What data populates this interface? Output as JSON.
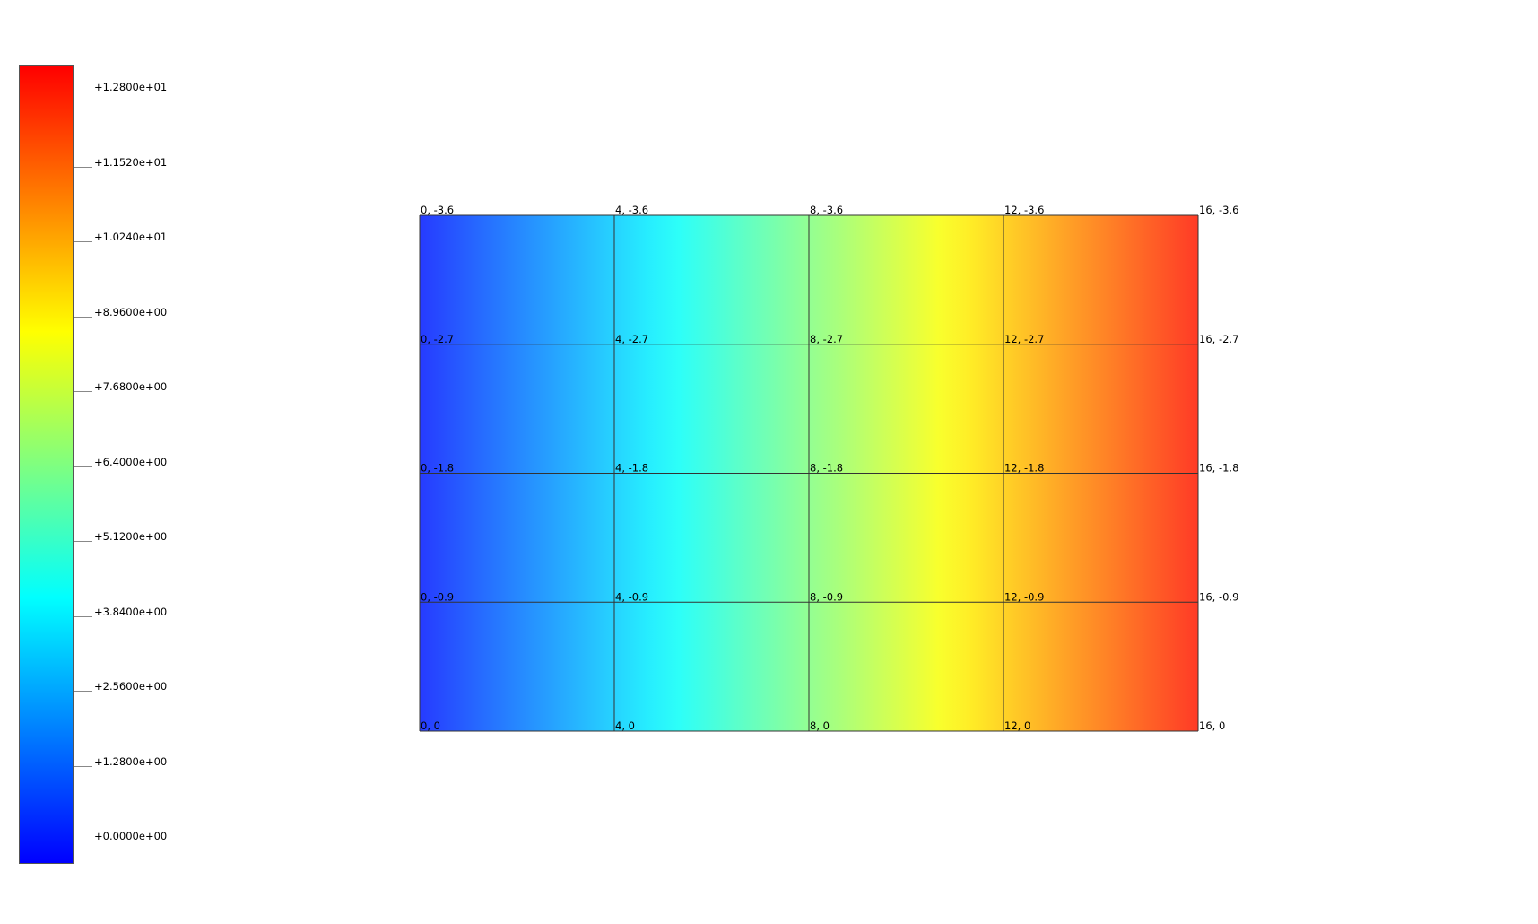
{
  "chart_data": {
    "type": "heatmap",
    "title": "",
    "colormap": [
      "#0000ff",
      "#00ffff",
      "#ffff00",
      "#ff0000"
    ],
    "colorbar": {
      "range": [
        0.0,
        12.8
      ],
      "ticks": [
        {
          "value": 12.8,
          "label": "+1.2800e+01"
        },
        {
          "value": 11.52,
          "label": "+1.1520e+01"
        },
        {
          "value": 10.24,
          "label": "+1.0240e+01"
        },
        {
          "value": 8.96,
          "label": "+8.9600e+00"
        },
        {
          "value": 7.68,
          "label": "+7.6800e+00"
        },
        {
          "value": 6.4,
          "label": "+6.4000e+00"
        },
        {
          "value": 5.12,
          "label": "+5.1200e+00"
        },
        {
          "value": 3.84,
          "label": "+3.8400e+00"
        },
        {
          "value": 2.56,
          "label": "+2.5600e+00"
        },
        {
          "value": 1.28,
          "label": "+1.2800e+00"
        },
        {
          "value": 0.0,
          "label": "+0.0000e+00"
        }
      ]
    },
    "mesh": {
      "x": [
        0,
        4,
        8,
        12,
        16
      ],
      "y": [
        -3.6,
        -2.7,
        -1.8,
        -0.9,
        0
      ],
      "field_range_across_x": [
        0.4,
        12.4
      ],
      "node_labels": [
        [
          "0, -3.6",
          "4, -3.6",
          "8, -3.6",
          "12, -3.6",
          "16, -3.6"
        ],
        [
          "0, -2.7",
          "4, -2.7",
          "8, -2.7",
          "12, -2.7",
          "16, -2.7"
        ],
        [
          "0, -1.8",
          "4, -1.8",
          "8, -1.8",
          "12, -1.8",
          "16, -1.8"
        ],
        [
          "0, -0.9",
          "4, -0.9",
          "8, -0.9",
          "12, -0.9",
          "16, -0.9"
        ],
        [
          "0, 0",
          "4, 0",
          "8, 0",
          "12, 0",
          "16, 0"
        ]
      ]
    }
  }
}
